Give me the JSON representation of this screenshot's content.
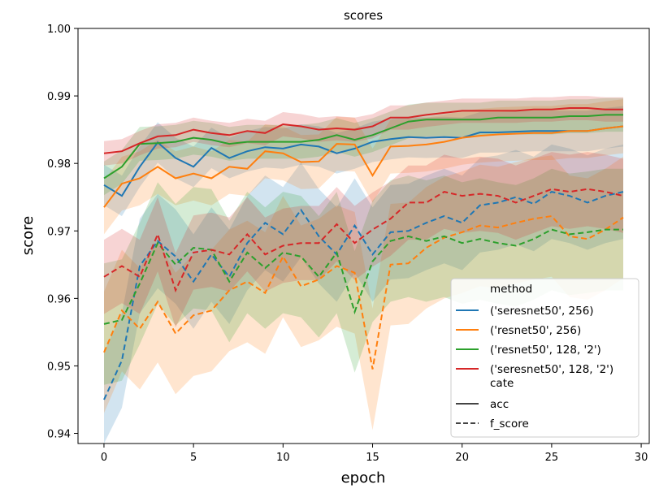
{
  "chart_data": {
    "type": "line",
    "title": "scores",
    "xlabel": "epoch",
    "ylabel": "score",
    "xlim": [
      -1.45,
      30.45
    ],
    "ylim": [
      0.9385,
      1.0
    ],
    "xticks": [
      "0",
      "5",
      "10",
      "15",
      "20",
      "25",
      "30"
    ],
    "yticks": [
      "0.94",
      "0.95",
      "0.96",
      "0.97",
      "0.98",
      "0.99",
      "1.00"
    ],
    "grid": false,
    "legend_position": "lower-right",
    "legend": {
      "hue_title": "method",
      "style_title": "cate",
      "style_entries": [
        {
          "label": "acc",
          "dash": "solid"
        },
        {
          "label": "f_score",
          "dash": "dashed"
        }
      ]
    },
    "x": [
      0,
      1,
      2,
      3,
      4,
      5,
      6,
      7,
      8,
      9,
      10,
      11,
      12,
      13,
      14,
      15,
      16,
      17,
      18,
      19,
      20,
      21,
      22,
      23,
      24,
      25,
      26,
      27,
      28,
      29
    ],
    "series": [
      {
        "name": "('seresnet50', 256)",
        "color": "#1f77b4",
        "acc": [
          0.9768,
          0.9752,
          0.9795,
          0.9831,
          0.9808,
          0.9795,
          0.9823,
          0.9808,
          0.9818,
          0.9824,
          0.9822,
          0.9828,
          0.9825,
          0.9815,
          0.9822,
          0.9832,
          0.9836,
          0.9839,
          0.9838,
          0.9839,
          0.9838,
          0.9846,
          0.9846,
          0.9847,
          0.9848,
          0.9848,
          0.9848,
          0.9848,
          0.9852,
          0.9855
        ],
        "acc_band": 0.003,
        "f_score": [
          0.945,
          0.9508,
          0.9648,
          0.9685,
          0.9662,
          0.9625,
          0.9665,
          0.9632,
          0.9682,
          0.9712,
          0.9695,
          0.9731,
          0.9692,
          0.9665,
          0.9708,
          0.9665,
          0.9698,
          0.97,
          0.9712,
          0.9722,
          0.9712,
          0.9738,
          0.9742,
          0.975,
          0.974,
          0.9758,
          0.9752,
          0.9742,
          0.9752,
          0.9758
        ],
        "f_band": 0.007
      },
      {
        "name": "('resnet50', 256)",
        "color": "#ff7f0e",
        "acc": [
          0.9735,
          0.977,
          0.9778,
          0.9795,
          0.9778,
          0.9785,
          0.9778,
          0.9795,
          0.9792,
          0.9818,
          0.9815,
          0.9802,
          0.9803,
          0.9829,
          0.9828,
          0.9782,
          0.9825,
          0.9826,
          0.9828,
          0.9832,
          0.9838,
          0.9841,
          0.9843,
          0.9844,
          0.9845,
          0.9845,
          0.9848,
          0.9848,
          0.9852,
          0.9855
        ],
        "acc_band": 0.004,
        "f_score": [
          0.952,
          0.9582,
          0.9555,
          0.9595,
          0.9548,
          0.9575,
          0.9582,
          0.9612,
          0.9625,
          0.9608,
          0.9662,
          0.9618,
          0.9628,
          0.9648,
          0.9638,
          0.9495,
          0.965,
          0.9652,
          0.9675,
          0.969,
          0.9698,
          0.9708,
          0.9705,
          0.9712,
          0.9718,
          0.9722,
          0.9692,
          0.9688,
          0.9702,
          0.972
        ],
        "f_band": 0.009
      },
      {
        "name": "('resnet50', 128, '2')",
        "color": "#2ca02c",
        "acc": [
          0.9778,
          0.9795,
          0.9829,
          0.983,
          0.9832,
          0.9838,
          0.9835,
          0.9829,
          0.9832,
          0.9832,
          0.9832,
          0.9832,
          0.9835,
          0.9842,
          0.9835,
          0.9842,
          0.9852,
          0.9862,
          0.9865,
          0.9865,
          0.9865,
          0.9865,
          0.9868,
          0.9868,
          0.9868,
          0.9868,
          0.987,
          0.987,
          0.9872,
          0.9872
        ],
        "acc_band": 0.0025,
        "f_score": [
          0.9562,
          0.9568,
          0.9622,
          0.9682,
          0.965,
          0.9675,
          0.9672,
          0.9625,
          0.9668,
          0.9645,
          0.9668,
          0.9662,
          0.9632,
          0.9668,
          0.958,
          0.9655,
          0.9685,
          0.9692,
          0.9685,
          0.9692,
          0.9682,
          0.9688,
          0.9682,
          0.9678,
          0.9688,
          0.9702,
          0.9695,
          0.9698,
          0.9702,
          0.9702
        ],
        "f_band": 0.009
      },
      {
        "name": "('seresnet50', 128, '2')",
        "color": "#d62728",
        "acc": [
          0.9815,
          0.9818,
          0.983,
          0.984,
          0.9842,
          0.985,
          0.9845,
          0.9842,
          0.9848,
          0.9845,
          0.9858,
          0.9855,
          0.985,
          0.9852,
          0.985,
          0.9855,
          0.9868,
          0.9868,
          0.9872,
          0.9875,
          0.9878,
          0.9878,
          0.9878,
          0.9878,
          0.988,
          0.988,
          0.9882,
          0.9882,
          0.988,
          0.988
        ],
        "acc_band": 0.0018,
        "f_score": [
          0.9632,
          0.9648,
          0.9632,
          0.9695,
          0.9612,
          0.9668,
          0.9672,
          0.9665,
          0.9695,
          0.9665,
          0.9678,
          0.9682,
          0.9682,
          0.971,
          0.9682,
          0.9702,
          0.9718,
          0.9742,
          0.9742,
          0.9758,
          0.9752,
          0.9755,
          0.9752,
          0.9742,
          0.9752,
          0.9762,
          0.9758,
          0.9762,
          0.9758,
          0.9752
        ],
        "f_band": 0.0055
      }
    ]
  }
}
